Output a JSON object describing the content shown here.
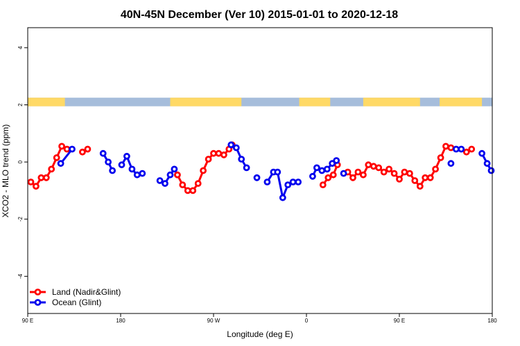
{
  "chart_data": {
    "type": "line",
    "title": "40N-45N December (Ver 10)   2015-01-01 to 2020-12-18",
    "xlabel": "Longitude (deg E)",
    "ylabel": "XCO2 - MLO trend (ppm)",
    "xlim": [
      90,
      540
    ],
    "ylim": [
      -5.3,
      4.7
    ],
    "x_ticks": [
      {
        "value": 90,
        "label": "90 E"
      },
      {
        "value": 180,
        "label": "180"
      },
      {
        "value": 270,
        "label": "90 W"
      },
      {
        "value": 360,
        "label": "0"
      },
      {
        "value": 450,
        "label": "90 E"
      },
      {
        "value": 540,
        "label": "180"
      }
    ],
    "y_ticks": [
      -4,
      -2,
      0,
      2,
      4
    ],
    "land_ocean_band": {
      "y_range": [
        1.95,
        2.25
      ],
      "land_color": "#ffd966",
      "ocean_color": "#a6bddb",
      "land_segments": [
        [
          90,
          126
        ],
        [
          228,
          297
        ],
        [
          353,
          383
        ],
        [
          415,
          470
        ],
        [
          489,
          530
        ]
      ]
    },
    "legend": {
      "position": "bottom-left",
      "entries": [
        {
          "label": "Land (Nadir&Glint)",
          "color": "#ff0000"
        },
        {
          "label": "Ocean (Glint)",
          "color": "#0000ee"
        }
      ]
    },
    "series": [
      {
        "name": "Land (Nadir&Glint)",
        "color": "#ff0000",
        "segments": [
          [
            [
              93,
              -0.7
            ],
            [
              98,
              -0.85
            ],
            [
              103,
              -0.55
            ],
            [
              108,
              -0.55
            ],
            [
              113,
              -0.25
            ],
            [
              118,
              0.15
            ],
            [
              123,
              0.55
            ],
            [
              128,
              0.45
            ]
          ],
          [
            [
              143,
              0.35
            ],
            [
              148,
              0.45
            ]
          ],
          [
            [
              235,
              -0.45
            ],
            [
              240,
              -0.8
            ],
            [
              245,
              -1.0
            ],
            [
              250,
              -1.0
            ],
            [
              255,
              -0.75
            ],
            [
              260,
              -0.3
            ],
            [
              265,
              0.1
            ],
            [
              270,
              0.3
            ],
            [
              275,
              0.3
            ],
            [
              280,
              0.25
            ],
            [
              285,
              0.45
            ],
            [
              288,
              0.6
            ]
          ],
          [
            [
              376,
              -0.8
            ],
            [
              381,
              -0.55
            ],
            [
              386,
              -0.45
            ],
            [
              390,
              -0.1
            ]
          ],
          [
            [
              400,
              -0.35
            ],
            [
              405,
              -0.55
            ],
            [
              410,
              -0.35
            ],
            [
              415,
              -0.45
            ],
            [
              420,
              -0.1
            ],
            [
              425,
              -0.15
            ],
            [
              430,
              -0.2
            ],
            [
              435,
              -0.35
            ],
            [
              440,
              -0.25
            ],
            [
              445,
              -0.4
            ],
            [
              450,
              -0.6
            ],
            [
              455,
              -0.35
            ],
            [
              460,
              -0.4
            ],
            [
              465,
              -0.65
            ],
            [
              470,
              -0.85
            ],
            [
              475,
              -0.55
            ],
            [
              480,
              -0.55
            ],
            [
              485,
              -0.25
            ],
            [
              490,
              0.15
            ],
            [
              495,
              0.55
            ],
            [
              500,
              0.5
            ]
          ],
          [
            [
              515,
              0.35
            ],
            [
              520,
              0.45
            ]
          ]
        ]
      },
      {
        "name": "Ocean (Glint)",
        "color": "#0000ee",
        "segments": [
          [
            [
              122,
              -0.05
            ],
            [
              133,
              0.45
            ]
          ],
          [
            [
              163,
              0.3
            ],
            [
              168,
              0.0
            ],
            [
              172,
              -0.3
            ]
          ],
          [
            [
              181,
              -0.1
            ],
            [
              186,
              0.2
            ],
            [
              191,
              -0.25
            ],
            [
              196,
              -0.45
            ],
            [
              201,
              -0.4
            ]
          ],
          [
            [
              218,
              -0.65
            ],
            [
              223,
              -0.75
            ],
            [
              228,
              -0.45
            ],
            [
              232,
              -0.25
            ]
          ],
          [
            [
              287,
              0.6
            ],
            [
              292,
              0.5
            ],
            [
              297,
              0.1
            ],
            [
              302,
              -0.2
            ]
          ],
          [
            [
              312,
              -0.55
            ]
          ],
          [
            [
              322,
              -0.7
            ],
            [
              328,
              -0.35
            ],
            [
              332,
              -0.35
            ],
            [
              337,
              -1.25
            ],
            [
              342,
              -0.8
            ],
            [
              347,
              -0.7
            ],
            [
              352,
              -0.7
            ]
          ],
          [
            [
              366,
              -0.5
            ],
            [
              370,
              -0.2
            ],
            [
              375,
              -0.3
            ],
            [
              380,
              -0.25
            ],
            [
              385,
              -0.05
            ],
            [
              389,
              0.05
            ]
          ],
          [
            [
              396,
              -0.4
            ]
          ],
          [
            [
              500,
              -0.05
            ]
          ],
          [
            [
              505,
              0.45
            ],
            [
              510,
              0.45
            ]
          ],
          [
            [
              530,
              0.3
            ],
            [
              535,
              -0.05
            ],
            [
              539,
              -0.3
            ]
          ]
        ]
      }
    ]
  }
}
